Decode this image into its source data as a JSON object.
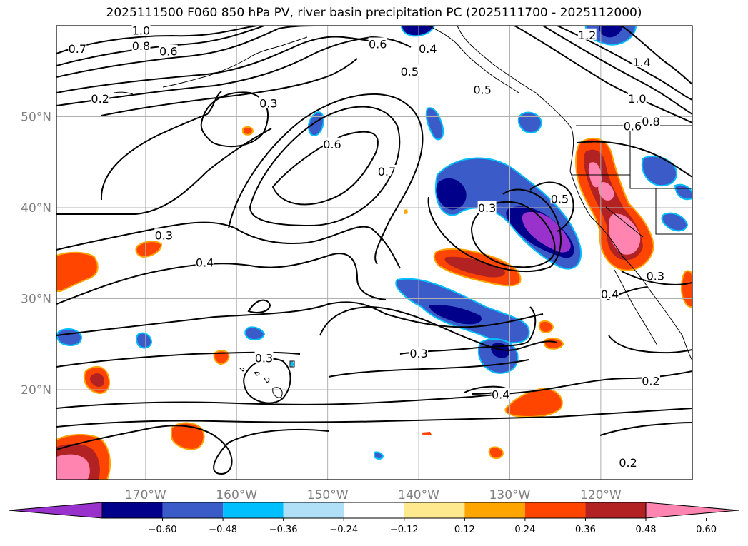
{
  "title": "2025111500 F060 850 hPa PV, river basin precipitation PC (2025111700 - 2025112000)",
  "lon_ticks": [
    {
      "lon": -170,
      "label": "170°W"
    },
    {
      "lon": -160,
      "label": "160°W"
    },
    {
      "lon": -150,
      "label": "150°W"
    },
    {
      "lon": -140,
      "label": "140°W"
    },
    {
      "lon": -130,
      "label": "130°W"
    },
    {
      "lon": -120,
      "label": "120°W"
    }
  ],
  "lat_ticks": [
    {
      "lat": 50,
      "label": "50°N"
    },
    {
      "lat": 40,
      "label": "40°N"
    },
    {
      "lat": 30,
      "label": "30°N"
    },
    {
      "lat": 20,
      "label": "20°N"
    }
  ],
  "contour_labels": [
    {
      "text": "1.0",
      "lon": -170.5,
      "lat": 59.5
    },
    {
      "text": "0.7",
      "lon": -177.5,
      "lat": 57.5
    },
    {
      "text": "0.8",
      "lon": -170.5,
      "lat": 57.8
    },
    {
      "text": "0.6",
      "lon": -167.5,
      "lat": 57.2
    },
    {
      "text": "0.2",
      "lon": -175.0,
      "lat": 52.0
    },
    {
      "text": "0.3",
      "lon": -156.5,
      "lat": 51.5
    },
    {
      "text": "0.6",
      "lon": -149.5,
      "lat": 47.0
    },
    {
      "text": "0.7",
      "lon": -143.5,
      "lat": 44.0
    },
    {
      "text": "0.5",
      "lon": -141.0,
      "lat": 55.0
    },
    {
      "text": "0.6",
      "lon": -144.5,
      "lat": 58.0
    },
    {
      "text": "0.4",
      "lon": -139.0,
      "lat": 57.5
    },
    {
      "text": "0.5",
      "lon": -133.0,
      "lat": 53.0
    },
    {
      "text": "0.3",
      "lon": -168.0,
      "lat": 37.0
    },
    {
      "text": "0.4",
      "lon": -163.5,
      "lat": 34.0
    },
    {
      "text": "0.3",
      "lon": -132.5,
      "lat": 40.0
    },
    {
      "text": "0.5",
      "lon": -124.5,
      "lat": 41.0
    },
    {
      "text": "1.0",
      "lon": -116.0,
      "lat": 52.0
    },
    {
      "text": "0.8",
      "lon": -114.5,
      "lat": 49.5
    },
    {
      "text": "0.6",
      "lon": -116.5,
      "lat": 49.0
    },
    {
      "text": "1.4",
      "lon": -115.5,
      "lat": 56.0
    },
    {
      "text": "1.2",
      "lon": -121.5,
      "lat": 59.0
    },
    {
      "text": "0.4",
      "lon": -119.0,
      "lat": 30.5
    },
    {
      "text": "0.3",
      "lon": -114.0,
      "lat": 32.5
    },
    {
      "text": "0.3",
      "lon": -140.0,
      "lat": 24.0
    },
    {
      "text": "0.3",
      "lon": -157.0,
      "lat": 23.5
    },
    {
      "text": "0.4",
      "lon": -131.0,
      "lat": 19.5
    },
    {
      "text": "0.2",
      "lon": -114.5,
      "lat": 21.0
    },
    {
      "text": "0.2",
      "lon": -117.0,
      "lat": 12.0
    }
  ],
  "colorbar": {
    "colors": [
      "#9932cc",
      "#00008b",
      "#3a5bc8",
      "#00bfff",
      "#b0e0f8",
      "#ffffff",
      "#ffe98f",
      "#ffa500",
      "#ff4500",
      "#b22222",
      "#ff85b0"
    ],
    "labels": [
      "−0.60",
      "−0.48",
      "−0.36",
      "−0.24",
      "−0.12",
      "0.12",
      "0.24",
      "0.36",
      "0.48",
      "0.60"
    ]
  }
}
